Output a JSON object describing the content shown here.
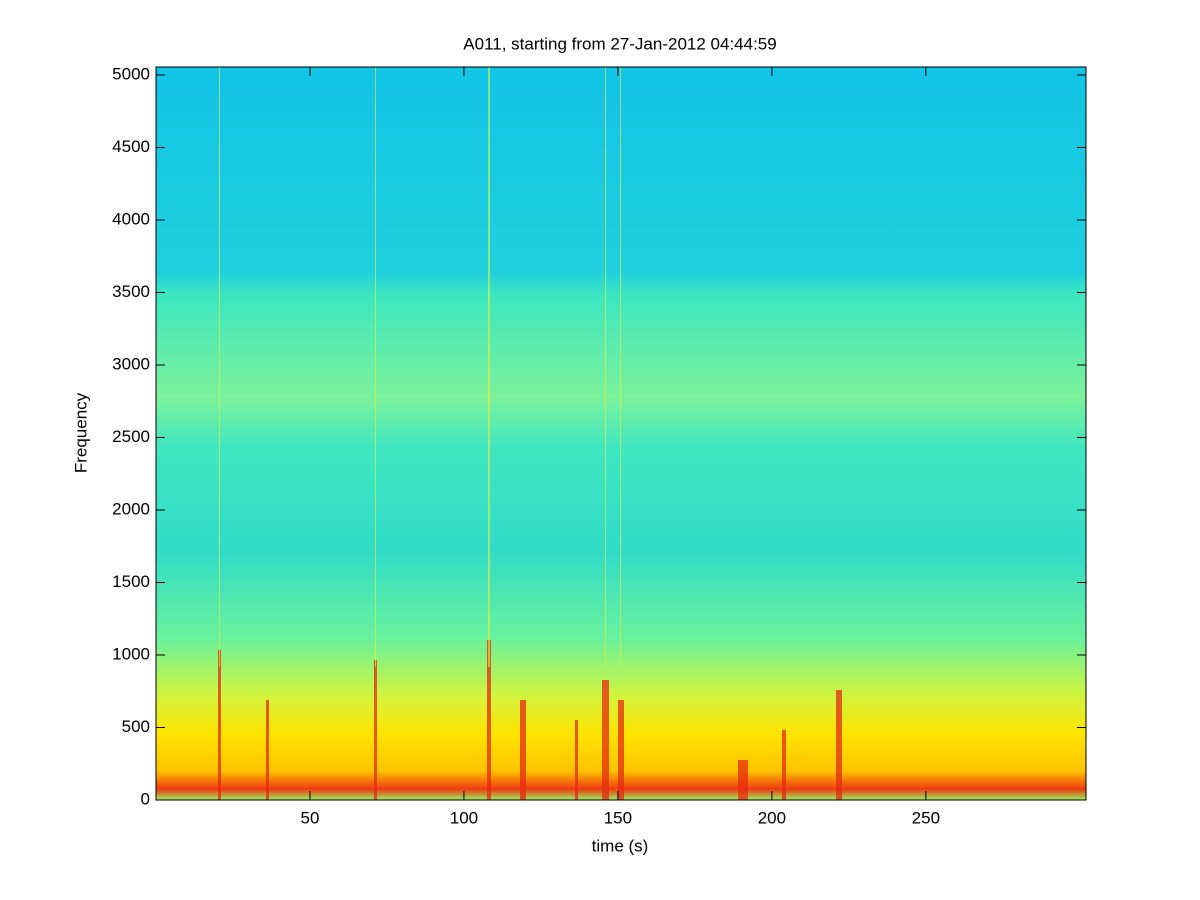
{
  "chart_data": {
    "type": "spectrogram",
    "title": "A011, starting from 27-Jan-2012 04:44:59",
    "xlabel": "time (s)",
    "ylabel": "Frequency",
    "xlim": [
      0,
      302
    ],
    "xticks": [
      50,
      100,
      150,
      200,
      250
    ],
    "ylim": [
      0,
      5055
    ],
    "yticks": [
      0,
      500,
      1000,
      1500,
      2000,
      2500,
      3000,
      3500,
      4000,
      4500,
      5000
    ]
  }
}
